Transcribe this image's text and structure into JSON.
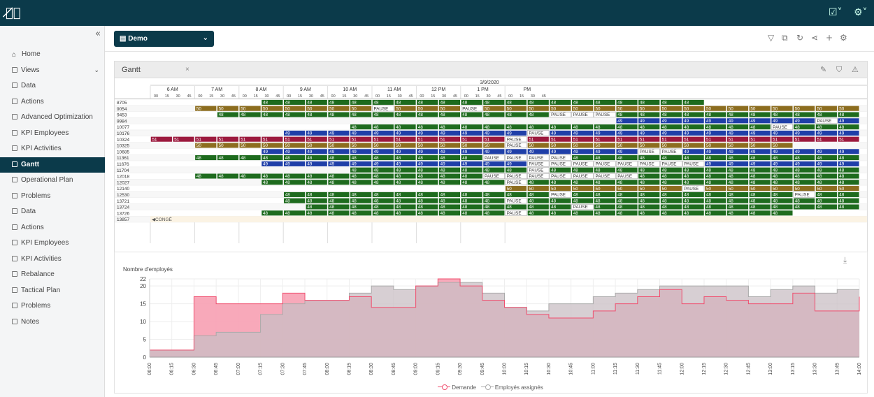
{
  "app": {
    "logo": "ℰ⃝"
  },
  "topbar": {
    "icons": [
      "report-icon",
      "settings-icon"
    ]
  },
  "sidebar": {
    "items": [
      {
        "label": "Home",
        "icon": "home-icon"
      },
      {
        "label": "Views",
        "icon": "page-icon"
      },
      {
        "label": "Data",
        "icon": "table-icon"
      },
      {
        "label": "Actions",
        "icon": "table-icon"
      },
      {
        "label": "Advanced Optimization",
        "icon": "table-icon"
      },
      {
        "label": "KPI Employees",
        "icon": "table-icon"
      },
      {
        "label": "KPI Activities",
        "icon": "table-icon"
      },
      {
        "label": "Gantt",
        "icon": "table-icon"
      },
      {
        "label": "Operational Plan",
        "icon": "table-icon"
      },
      {
        "label": "Problems",
        "icon": "table-icon"
      },
      {
        "label": "Data",
        "icon": "table-icon"
      },
      {
        "label": "Actions",
        "icon": "table-icon"
      },
      {
        "label": "KPI Employees",
        "icon": "table-icon"
      },
      {
        "label": "KPI Activities",
        "icon": "table-icon"
      },
      {
        "label": "Rebalance",
        "icon": "table-icon"
      },
      {
        "label": "Tactical Plan",
        "icon": "table-icon"
      },
      {
        "label": "Problems",
        "icon": "table-icon"
      },
      {
        "label": "Notes",
        "icon": "table-icon"
      }
    ],
    "active": "Gantt"
  },
  "header": {
    "view_select": "Demo"
  },
  "gantt": {
    "tab_title": "Gantt",
    "date": "3/9/2020",
    "hours": [
      "6 AM",
      "7 AM",
      "8 AM",
      "9 AM",
      "10 AM",
      "11 AM",
      "12 PM",
      "1 PM",
      "PM"
    ],
    "quarters": [
      "00",
      "15",
      "30",
      "45"
    ],
    "colors": {
      "48": "#1e6b1e",
      "50": "#8c6d1f",
      "49": "#1f3fa8",
      "51": "#9c1a3e",
      "PAUSE": "#ffffff"
    },
    "rows": [
      {
        "id": "8705",
        "blocks": [
          [
            10,
            "48"
          ],
          [
            11,
            "48"
          ],
          [
            12,
            "48"
          ],
          [
            13,
            "48"
          ],
          [
            14,
            "48"
          ],
          [
            15,
            "48"
          ],
          [
            16,
            "48"
          ],
          [
            17,
            "48"
          ],
          [
            18,
            "48"
          ],
          [
            19,
            "48"
          ],
          [
            20,
            "48"
          ],
          [
            21,
            "48"
          ],
          [
            22,
            "48"
          ],
          [
            23,
            "48"
          ],
          [
            24,
            "48"
          ],
          [
            25,
            "48"
          ],
          [
            26,
            "48"
          ],
          [
            27,
            "48"
          ],
          [
            28,
            "48"
          ],
          [
            29,
            "48"
          ],
          [
            30,
            "48"
          ],
          [
            31,
            "48"
          ],
          [
            32,
            "48"
          ],
          [
            33,
            "48"
          ],
          [
            34,
            "48"
          ],
          [
            35,
            "48"
          ],
          [
            36,
            "48"
          ],
          [
            37,
            "48"
          ],
          [
            38,
            "48"
          ],
          [
            39,
            "48"
          ],
          [
            40,
            "48"
          ],
          [
            41,
            "48"
          ],
          [
            42,
            "48"
          ],
          [
            43,
            "48"
          ],
          [
            44,
            "48"
          ],
          [
            45,
            "48"
          ],
          [
            46,
            "48"
          ],
          [
            47,
            "48"
          ],
          [
            48,
            "48"
          ],
          [
            49,
            "48"
          ],
          [
            50,
            "48"
          ],
          [
            51,
            "48"
          ],
          [
            52,
            "48"
          ],
          [
            53,
            "48"
          ],
          [
            54,
            "48"
          ],
          [
            55,
            "48"
          ],
          [
            56,
            "48"
          ],
          [
            57,
            "48"
          ],
          [
            58,
            "48"
          ]
        ]
      },
      {
        "id": "9054",
        "blocks": []
      },
      {
        "id": "9453",
        "blocks": []
      },
      {
        "id": "9984",
        "blocks": []
      },
      {
        "id": "10077",
        "blocks": []
      },
      {
        "id": "10176",
        "blocks": []
      },
      {
        "id": "10324",
        "blocks": []
      },
      {
        "id": "10325",
        "blocks": []
      },
      {
        "id": "10685",
        "blocks": []
      },
      {
        "id": "11361",
        "blocks": []
      },
      {
        "id": "11676",
        "blocks": []
      },
      {
        "id": "11704",
        "blocks": []
      },
      {
        "id": "12018",
        "blocks": []
      },
      {
        "id": "12027",
        "blocks": []
      },
      {
        "id": "12140",
        "blocks": []
      },
      {
        "id": "12530",
        "blocks": []
      },
      {
        "id": "13721",
        "blocks": []
      },
      {
        "id": "13724",
        "blocks": []
      },
      {
        "id": "13726",
        "blocks": []
      },
      {
        "id": "13857",
        "blocks": []
      }
    ],
    "conge_label": "CONGÉ"
  },
  "chart_data": {
    "type": "area",
    "ylabel": "Nombre d'employés",
    "ylim": [
      0,
      22
    ],
    "yticks": [
      0,
      5,
      10,
      15,
      20,
      22
    ],
    "x": [
      "06:00",
      "06:15",
      "06:30",
      "06:45",
      "07:00",
      "07:15",
      "07:30",
      "07:45",
      "08:00",
      "08:15",
      "08:30",
      "08:45",
      "09:00",
      "09:15",
      "09:30",
      "09:45",
      "10:00",
      "10:15",
      "10:30",
      "10:45",
      "11:00",
      "11:15",
      "11:30",
      "11:45",
      "12:00",
      "12:15",
      "12:30",
      "12:45",
      "13:00",
      "13:15",
      "13:30",
      "13:45",
      "14:00"
    ],
    "series": [
      {
        "name": "Demande",
        "color": "#f04e6e",
        "values": [
          2,
          2,
          17,
          15,
          15,
          15,
          18,
          16,
          16,
          17,
          14,
          14,
          20,
          22,
          20,
          16,
          14,
          12,
          11,
          11,
          13,
          15,
          17,
          19,
          15,
          17,
          16,
          15,
          15,
          18,
          13,
          13,
          17
        ]
      },
      {
        "name": "Employés assignés",
        "color": "#aaaaaa",
        "values": [
          2,
          2,
          6,
          7,
          7,
          12,
          15,
          16,
          16,
          18,
          20,
          19,
          20,
          21,
          21,
          18,
          14,
          13,
          15,
          15,
          17,
          18,
          19,
          20,
          20,
          20,
          20,
          17,
          19,
          20,
          18,
          19,
          19
        ]
      }
    ],
    "legend": "bottom"
  }
}
